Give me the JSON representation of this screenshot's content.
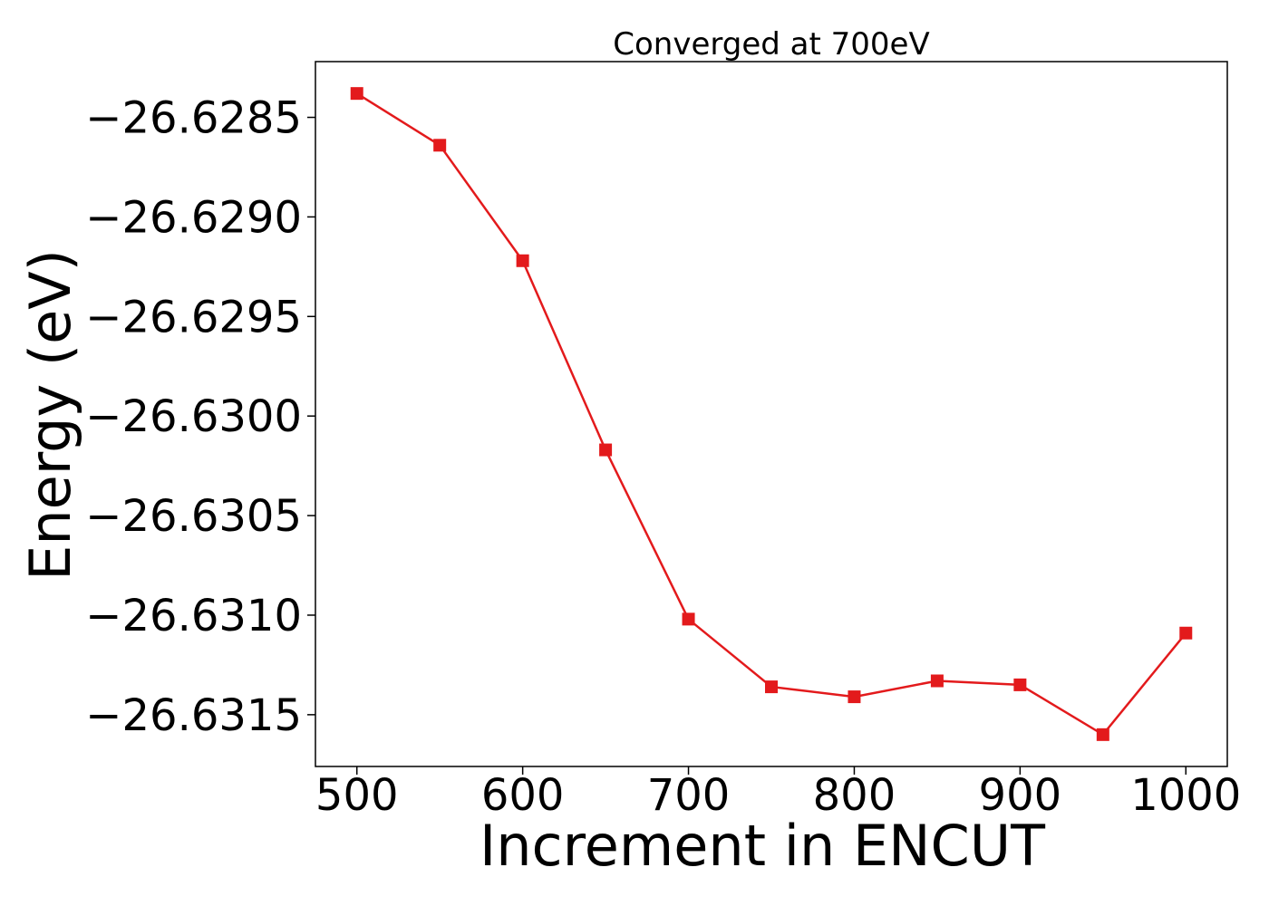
{
  "chart_data": {
    "type": "line",
    "title": "Converged at 700eV",
    "xlabel": "Increment in ENCUT",
    "ylabel": "Energy (eV)",
    "x": [
      500,
      550,
      600,
      650,
      700,
      750,
      800,
      850,
      900,
      950,
      1000
    ],
    "series": [
      {
        "values": [
          -26.62838,
          -26.62864,
          -26.62922,
          -26.63017,
          -26.63102,
          -26.63136,
          -26.63141,
          -26.63133,
          -26.63135,
          -26.6316,
          -26.63109
        ],
        "color": "#e31a1c",
        "marker": "square"
      }
    ],
    "xlim": [
      475,
      1025
    ],
    "ylim": [
      -26.63176,
      -26.62822
    ],
    "xticks": [
      500,
      600,
      700,
      800,
      900,
      1000
    ],
    "xtick_labels": [
      "500",
      "600",
      "700",
      "800",
      "900",
      "1000"
    ],
    "yticks": [
      -26.6285,
      -26.629,
      -26.6295,
      -26.63,
      -26.6305,
      -26.631,
      -26.6315
    ],
    "ytick_labels": [
      "−26.6285",
      "−26.6290",
      "−26.6295",
      "−26.6300",
      "−26.6305",
      "−26.6310",
      "−26.6315"
    ],
    "grid": false,
    "legend": "none"
  }
}
